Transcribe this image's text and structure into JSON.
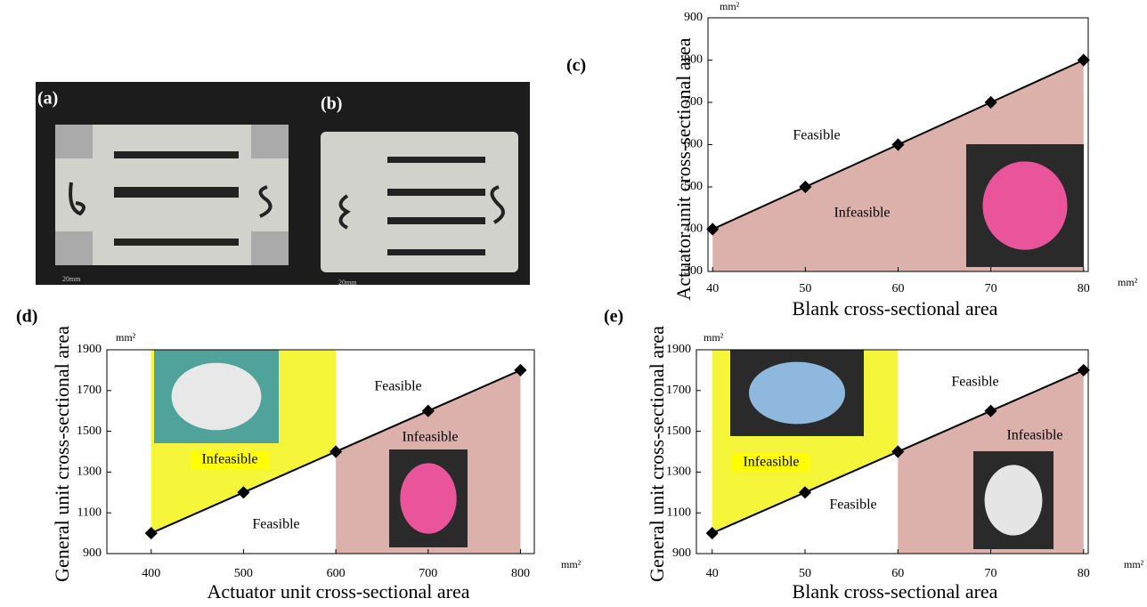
{
  "photos": [
    {
      "label": "(a)",
      "scale_text": "20mm"
    },
    {
      "label": "(b)",
      "scale_text": "20mm"
    }
  ],
  "chart_data": [
    {
      "type": "line",
      "label": "(c)",
      "x_label": "Blank cross-sectional area",
      "y_label": "Actuator unit cross-sectional area",
      "x_unit": "mm²",
      "y_unit": "mm²",
      "x": [
        40,
        50,
        60,
        70,
        80
      ],
      "series": [
        {
          "color": "#000000",
          "values": [
            400,
            500,
            600,
            700,
            800
          ]
        }
      ],
      "xlim": [
        39.5,
        80.5
      ],
      "ylim": [
        300,
        900
      ],
      "xticks": [
        40,
        50,
        60,
        70,
        80
      ],
      "yticks": [
        300,
        400,
        500,
        600,
        700,
        800,
        900
      ],
      "shading": [
        {
          "from": 40,
          "to": 80,
          "side": "below",
          "color": "#dcb1ab"
        }
      ],
      "annotations": [
        "Feasible",
        "Infeasible"
      ]
    },
    {
      "type": "line",
      "label": "(d)",
      "x_label": "Actuator unit cross-sectional area",
      "y_label": "General unit cross-sectional area",
      "x_unit": "mm²",
      "y_unit": "mm²",
      "x": [
        400,
        500,
        600,
        700,
        800
      ],
      "series": [
        {
          "color": "#000000",
          "values": [
            1000,
            1200,
            1400,
            1600,
            1800
          ]
        }
      ],
      "xlim": [
        352,
        815
      ],
      "ylim": [
        900,
        1900
      ],
      "xticks": [
        400,
        500,
        600,
        700,
        800
      ],
      "yticks": [
        900,
        1100,
        1300,
        1500,
        1700,
        1900
      ],
      "shading": [
        {
          "from": 400,
          "to": 600,
          "side": "above",
          "color": "#f5f53a"
        },
        {
          "from": 600,
          "to": 800,
          "side": "below",
          "color": "#dcb1ab"
        }
      ],
      "annotations": [
        "Feasible",
        "Infeasible",
        "Infeasible",
        "Feasible"
      ]
    },
    {
      "type": "line",
      "label": "(e)",
      "x_label": "Blank cross-sectional area",
      "y_label": "General unit cross-sectional area",
      "x_unit": "mm²",
      "y_unit": "mm²",
      "x": [
        40,
        50,
        60,
        70,
        80
      ],
      "series": [
        {
          "color": "#000000",
          "values": [
            1000,
            1200,
            1400,
            1600,
            1800
          ]
        }
      ],
      "xlim": [
        38.3,
        80.5
      ],
      "ylim": [
        900,
        1900
      ],
      "xticks": [
        40,
        50,
        60,
        70,
        80
      ],
      "yticks": [
        900,
        1100,
        1300,
        1500,
        1700,
        1900
      ],
      "shading": [
        {
          "from": 40,
          "to": 60,
          "side": "above",
          "color": "#f5f53a"
        },
        {
          "from": 60,
          "to": 80,
          "side": "below",
          "color": "#dcb1ab"
        }
      ],
      "annotations": [
        "Feasible",
        "Infeasible",
        "Infeasible",
        "Feasible"
      ]
    }
  ]
}
